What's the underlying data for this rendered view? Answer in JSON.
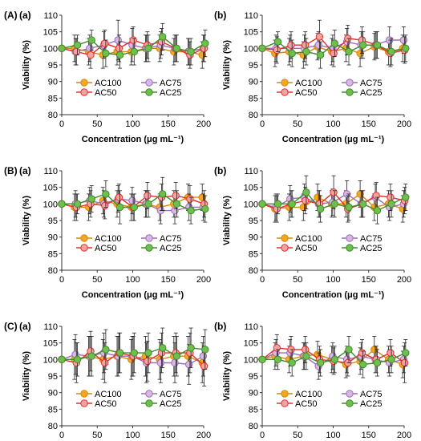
{
  "figure": {
    "series_meta": [
      {
        "name": "AC100",
        "color": "#f5a623",
        "edge": "#d08a10"
      },
      {
        "name": "AC75",
        "color": "#d9b8e6",
        "edge": "#9b6fb3"
      },
      {
        "name": "AC50",
        "color": "#f4a3a3",
        "edge": "#e0312f"
      },
      {
        "name": "AC25",
        "color": "#6fbf4f",
        "edge": "#3f8a2c"
      }
    ]
  },
  "chart_data": [
    {
      "type": "scatter",
      "group_label": "(A)",
      "panel_label": "(a)",
      "xlabel": "Concentration (μg mL⁻¹)",
      "ylabel": "Viability (%)",
      "xlim": [
        0,
        200
      ],
      "ylim": [
        80,
        110
      ],
      "xticks": [
        0,
        50,
        100,
        150,
        200
      ],
      "yticks": [
        80,
        85,
        90,
        95,
        100,
        105,
        110
      ],
      "legend": "bottom-center",
      "grid": false,
      "x": [
        0,
        20,
        40,
        60,
        80,
        100,
        120,
        140,
        160,
        180,
        200
      ],
      "series": [
        {
          "name": "AC100",
          "values": [
            100,
            100,
            99,
            98,
            99,
            99,
            100,
            100,
            99,
            99,
            98
          ],
          "errors": [
            0,
            4,
            4,
            4,
            4,
            4,
            4,
            4,
            4,
            4,
            4
          ]
        },
        {
          "name": "AC75",
          "values": [
            100,
            99,
            100,
            101,
            102.5,
            101,
            100,
            101,
            100,
            99,
            100
          ],
          "errors": [
            0,
            4,
            4,
            4,
            6,
            5,
            4,
            4,
            4,
            4,
            4
          ]
        },
        {
          "name": "AC50",
          "values": [
            100,
            99,
            98,
            101.5,
            100,
            102.5,
            101,
            102,
            100,
            98,
            100
          ],
          "errors": [
            0,
            4,
            4,
            4,
            4,
            4,
            4,
            4,
            4,
            4,
            4
          ]
        },
        {
          "name": "AC25",
          "values": [
            100,
            101,
            102.5,
            98.5,
            98,
            99,
            100,
            103.5,
            100,
            99,
            101.5
          ],
          "errors": [
            0,
            3,
            3,
            4,
            4,
            4,
            4,
            4,
            4,
            4,
            4
          ]
        }
      ]
    },
    {
      "type": "scatter",
      "group_label": "",
      "panel_label": "(b)",
      "xlabel": "Concentration (μg mL⁻¹)",
      "ylabel": "Viability (%)",
      "xlim": [
        0,
        200
      ],
      "ylim": [
        80,
        110
      ],
      "xticks": [
        0,
        50,
        100,
        150,
        200
      ],
      "yticks": [
        80,
        85,
        90,
        95,
        100,
        105,
        110
      ],
      "legend": "bottom-center",
      "grid": false,
      "x": [
        0,
        20,
        40,
        60,
        80,
        100,
        120,
        140,
        160,
        180,
        200
      ],
      "series": [
        {
          "name": "AC100",
          "values": [
            100,
            98.5,
            99,
            98,
            100.5,
            99,
            100,
            98.5,
            100.5,
            99,
            100
          ],
          "errors": [
            0,
            4,
            4,
            4,
            4,
            4,
            4,
            4,
            4,
            4,
            4
          ]
        },
        {
          "name": "AC75",
          "values": [
            100,
            100,
            100,
            100,
            101,
            100,
            102,
            101,
            101,
            102.5,
            102.5
          ],
          "errors": [
            0,
            4,
            4,
            4,
            4,
            4,
            4,
            4,
            4,
            4,
            4
          ]
        },
        {
          "name": "AC50",
          "values": [
            100,
            99.5,
            101,
            101,
            103.5,
            98.5,
            103,
            102.5,
            101,
            98.5,
            99.5
          ],
          "errors": [
            0,
            4,
            4,
            4,
            5,
            4,
            4,
            4,
            4,
            4,
            4
          ]
        },
        {
          "name": "AC25",
          "values": [
            100,
            102,
            98.5,
            99,
            98,
            101.5,
            99,
            101,
            101,
            99,
            100
          ],
          "errors": [
            0,
            3,
            4,
            4,
            4,
            4,
            4,
            4,
            4,
            4,
            4
          ]
        }
      ]
    },
    {
      "type": "scatter",
      "group_label": "(B)",
      "panel_label": "(a)",
      "xlabel": "Concentration (μg mL⁻¹)",
      "ylabel": "Viability (%)",
      "xlim": [
        0,
        200
      ],
      "ylim": [
        80,
        110
      ],
      "xticks": [
        0,
        50,
        100,
        150,
        200
      ],
      "yticks": [
        80,
        85,
        90,
        95,
        100,
        105,
        110
      ],
      "legend": "bottom-center",
      "grid": false,
      "x": [
        0,
        20,
        40,
        60,
        80,
        100,
        120,
        140,
        160,
        180,
        200
      ],
      "series": [
        {
          "name": "AC100",
          "values": [
            100,
            99,
            99,
            101,
            100,
            99,
            100,
            99,
            100,
            102,
            102
          ],
          "errors": [
            0,
            4,
            4,
            4,
            4,
            4,
            4,
            4,
            4,
            4,
            4
          ]
        },
        {
          "name": "AC75",
          "values": [
            100,
            100,
            101,
            100,
            101.5,
            101,
            100,
            98,
            98,
            99,
            99
          ],
          "errors": [
            0,
            4,
            4,
            4,
            4,
            4,
            4,
            4,
            4,
            4,
            4
          ]
        },
        {
          "name": "AC50",
          "values": [
            100,
            99,
            100,
            99.5,
            102,
            99,
            102.5,
            102,
            102.5,
            101.5,
            100
          ],
          "errors": [
            0,
            4,
            4,
            4,
            4,
            4,
            4,
            4,
            4,
            4,
            4
          ]
        },
        {
          "name": "AC25",
          "values": [
            100,
            100,
            101.5,
            103,
            99,
            99,
            100,
            103,
            100,
            98,
            98.5
          ],
          "errors": [
            0,
            3,
            4,
            4,
            5,
            4,
            4,
            5,
            4,
            4,
            4
          ]
        }
      ]
    },
    {
      "type": "scatter",
      "group_label": "",
      "panel_label": "(b)",
      "xlabel": "Concentration (μg mL⁻¹)",
      "ylabel": "Viability (%)",
      "xlim": [
        0,
        200
      ],
      "ylim": [
        80,
        110
      ],
      "xticks": [
        0,
        50,
        100,
        150,
        200
      ],
      "yticks": [
        80,
        85,
        90,
        95,
        100,
        105,
        110
      ],
      "legend": "bottom-center",
      "grid": false,
      "x": [
        0,
        20,
        40,
        60,
        80,
        100,
        120,
        140,
        160,
        180,
        200
      ],
      "series": [
        {
          "name": "AC100",
          "values": [
            100,
            98.5,
            99,
            99,
            102,
            100,
            100,
            103,
            99,
            100,
            98.5
          ],
          "errors": [
            0,
            4,
            4,
            4,
            4,
            4,
            4,
            4,
            4,
            4,
            4
          ]
        },
        {
          "name": "AC75",
          "values": [
            100,
            99,
            101.5,
            102,
            100,
            100.5,
            103,
            100,
            102,
            99,
            100
          ],
          "errors": [
            0,
            4,
            4,
            4,
            4,
            4,
            4,
            4,
            4,
            4,
            4
          ]
        },
        {
          "name": "AC50",
          "values": [
            100,
            98.5,
            100,
            101,
            100,
            103.5,
            98.5,
            100,
            102.5,
            102,
            101
          ],
          "errors": [
            0,
            4,
            4,
            4,
            4,
            5,
            4,
            4,
            4,
            4,
            4
          ]
        },
        {
          "name": "AC25",
          "values": [
            100,
            100,
            100,
            103.5,
            98.5,
            100,
            99,
            100,
            98,
            100,
            102
          ],
          "errors": [
            0,
            3,
            4,
            5,
            4,
            4,
            4,
            4,
            4,
            4,
            4
          ]
        }
      ]
    },
    {
      "type": "scatter",
      "group_label": "(C)",
      "panel_label": "(a)",
      "xlabel": "Concentration (μg mL⁻¹)",
      "ylabel": "Viability (%)",
      "xlim": [
        0,
        200
      ],
      "ylim": [
        80,
        110
      ],
      "xticks": [
        0,
        50,
        100,
        150,
        200
      ],
      "yticks": [
        80,
        85,
        90,
        95,
        100,
        105,
        110
      ],
      "legend": "bottom-center",
      "grid": false,
      "x": [
        0,
        20,
        40,
        60,
        80,
        100,
        120,
        140,
        160,
        180,
        200
      ],
      "series": [
        {
          "name": "AC100",
          "values": [
            100,
            100,
            101,
            100,
            101,
            100,
            101,
            100,
            101,
            101,
            99
          ],
          "errors": [
            0,
            6,
            6,
            6,
            6,
            6,
            6,
            6,
            6,
            6,
            6
          ]
        },
        {
          "name": "AC75",
          "values": [
            100,
            101.5,
            101,
            102,
            101,
            101,
            99,
            99,
            99,
            98.5,
            101
          ],
          "errors": [
            0,
            6,
            6,
            6,
            6,
            6,
            6,
            6,
            6,
            6,
            6
          ]
        },
        {
          "name": "AC50",
          "values": [
            100,
            99,
            102.5,
            99,
            102,
            101,
            99.5,
            102,
            102,
            102,
            98
          ],
          "errors": [
            0,
            6,
            6,
            6,
            6,
            6,
            6,
            6,
            6,
            6,
            6
          ]
        },
        {
          "name": "AC25",
          "values": [
            100,
            100,
            101,
            103,
            102,
            102,
            102,
            103.5,
            101,
            103.5,
            103
          ],
          "errors": [
            0,
            5,
            6,
            6,
            6,
            6,
            6,
            6,
            6,
            6,
            6
          ]
        }
      ]
    },
    {
      "type": "scatter",
      "group_label": "",
      "panel_label": "(b)",
      "xlabel": "Concentration (μg mL⁻¹)",
      "ylabel": "Viability (%)",
      "xlim": [
        0,
        200
      ],
      "ylim": [
        80,
        110
      ],
      "xticks": [
        0,
        50,
        100,
        150,
        200
      ],
      "yticks": [
        80,
        85,
        90,
        95,
        100,
        105,
        110
      ],
      "legend": "bottom-center",
      "grid": false,
      "x": [
        0,
        20,
        40,
        60,
        80,
        100,
        120,
        140,
        160,
        180,
        200
      ],
      "series": [
        {
          "name": "AC100",
          "values": [
            100,
            101,
            100,
            101,
            101.5,
            100,
            98.5,
            99.5,
            103,
            100,
            98.5
          ],
          "errors": [
            0,
            4,
            4,
            4,
            4,
            4,
            4,
            4,
            4,
            4,
            4
          ]
        },
        {
          "name": "AC75",
          "values": [
            100,
            102,
            102,
            101,
            98,
            101,
            100,
            101,
            100,
            99,
            100
          ],
          "errors": [
            0,
            4,
            4,
            4,
            4,
            4,
            4,
            4,
            4,
            4,
            4
          ]
        },
        {
          "name": "AC50",
          "values": [
            100,
            103.5,
            103,
            103,
            100,
            99.5,
            99,
            102,
            100,
            102,
            99
          ],
          "errors": [
            0,
            4,
            4,
            4,
            4,
            4,
            4,
            4,
            4,
            4,
            6
          ]
        },
        {
          "name": "AC25",
          "values": [
            100,
            100,
            99,
            101,
            99,
            100,
            103,
            98.5,
            99,
            100,
            102
          ],
          "errors": [
            0,
            3,
            4,
            4,
            4,
            4,
            4,
            4,
            4,
            4,
            4
          ]
        }
      ]
    }
  ]
}
